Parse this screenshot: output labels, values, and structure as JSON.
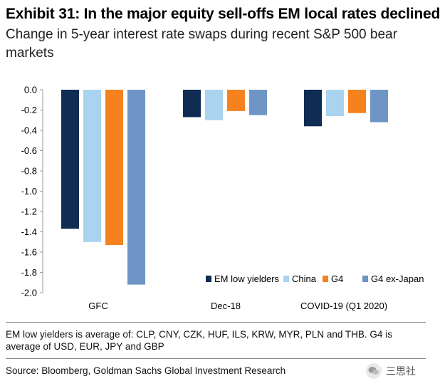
{
  "header": {
    "title": "Exhibit 31: In the major equity sell-offs EM local rates declined",
    "subtitle": "Change in 5-year interest rate swaps during recent S&P 500 bear markets"
  },
  "chart_data": {
    "type": "bar",
    "title": "Exhibit 31: In the major equity sell-offs EM local rates declined",
    "subtitle": "Change in 5-year interest rate swaps during recent S&P 500 bear markets",
    "categories": [
      "GFC",
      "Dec-18",
      "COVID-19 (Q1 2020)"
    ],
    "series": [
      {
        "name": "EM low yielders",
        "color": "#0f2d52",
        "values": [
          -1.37,
          -0.27,
          -0.36
        ]
      },
      {
        "name": "China",
        "color": "#a9d3ee",
        "values": [
          -1.5,
          -0.3,
          -0.26
        ]
      },
      {
        "name": "G4",
        "color": "#f5821f",
        "values": [
          -1.53,
          -0.21,
          -0.23
        ]
      },
      {
        "name": "G4 ex-Japan",
        "color": "#6f95c6",
        "values": [
          -1.92,
          -0.25,
          -0.32
        ]
      }
    ],
    "yticks": [
      "0.0",
      "-0.2",
      "-0.4",
      "-0.6",
      "-0.8",
      "-1.0",
      "-1.2",
      "-1.4",
      "-1.6",
      "-1.8",
      "-2.0"
    ],
    "ylim": [
      -2.0,
      0.0
    ],
    "xlabel": "",
    "ylabel": "",
    "grid": false,
    "legend": "bottom-right"
  },
  "notes": {
    "footnote": "EM low yielders is average of: CLP, CNY, CZK, HUF, ILS, KRW, MYR, PLN and THB. G4 is average of USD, EUR, JPY and GBP",
    "source": "Source: Bloomberg, Goldman Sachs Global Investment Research"
  },
  "watermark": {
    "label": "三思社",
    "icon": "wechat-icon"
  }
}
